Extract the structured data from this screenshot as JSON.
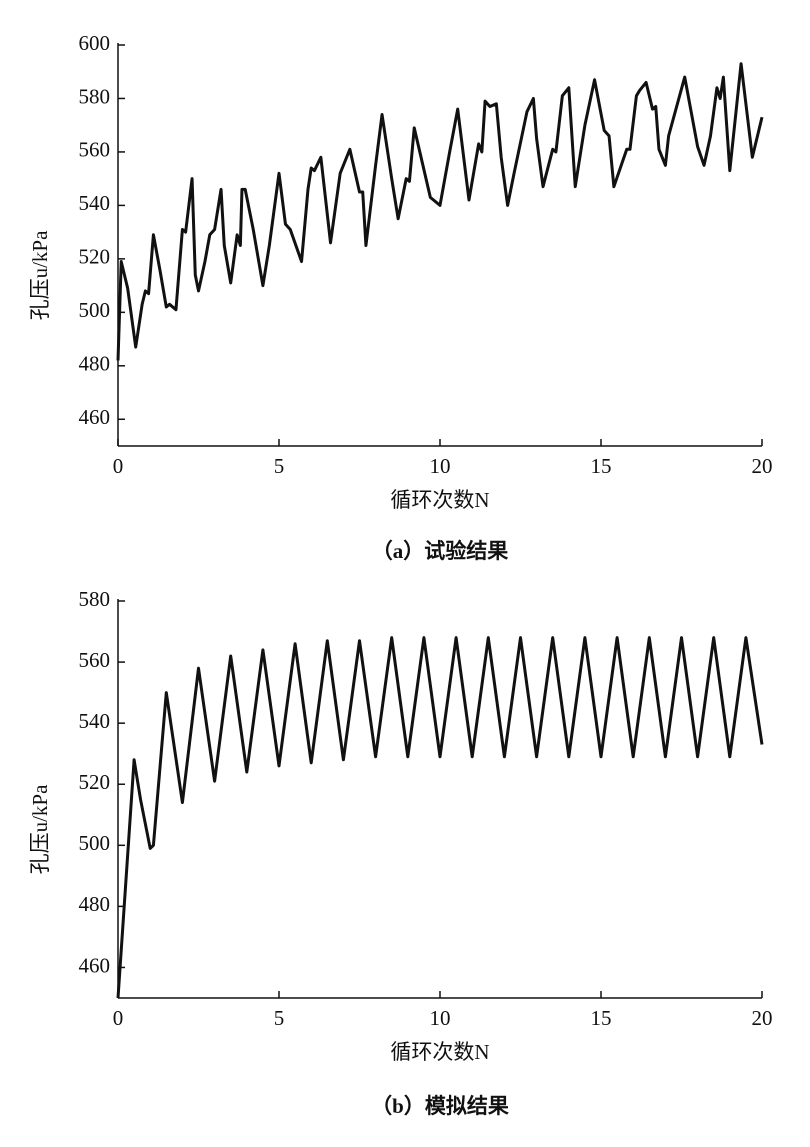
{
  "chart_data": [
    {
      "type": "line",
      "caption": "（a）试验结果",
      "xlabel": "循环次数N",
      "ylabel": "孔压u/kPa",
      "xlim": [
        0,
        20
      ],
      "xticks": [
        0,
        5,
        10,
        15,
        20
      ],
      "ylim": [
        450,
        600
      ],
      "yticks": [
        460,
        480,
        500,
        520,
        540,
        560,
        580,
        600
      ],
      "x": [
        0,
        0.1,
        0.3,
        0.55,
        0.75,
        0.85,
        0.95,
        1.1,
        1.3,
        1.5,
        1.6,
        1.8,
        2.0,
        2.1,
        2.3,
        2.4,
        2.5,
        2.7,
        2.85,
        3.0,
        3.2,
        3.3,
        3.5,
        3.7,
        3.8,
        3.85,
        3.95,
        4.2,
        4.5,
        4.7,
        5.0,
        5.2,
        5.35,
        5.7,
        5.9,
        6.0,
        6.1,
        6.3,
        6.6,
        6.9,
        7.0,
        7.2,
        7.5,
        7.6,
        7.7,
        8.0,
        8.2,
        8.5,
        8.7,
        8.95,
        9.05,
        9.2,
        9.45,
        9.7,
        10.0,
        10.3,
        10.55,
        10.9,
        11.2,
        11.3,
        11.4,
        11.55,
        11.75,
        11.9,
        12.1,
        12.3,
        12.7,
        12.9,
        13.0,
        13.2,
        13.5,
        13.6,
        13.8,
        14.0,
        14.2,
        14.5,
        14.8,
        15.1,
        15.25,
        15.4,
        15.8,
        15.9,
        16.1,
        16.2,
        16.4,
        16.6,
        16.7,
        16.8,
        17.0,
        17.1,
        17.6,
        17.8,
        18.0,
        18.2,
        18.4,
        18.6,
        18.7,
        18.8,
        19.0,
        19.35,
        19.7,
        20
      ],
      "series": [
        {
          "color": "#111111",
          "values": [
            482,
            519,
            509,
            487,
            503,
            508,
            507,
            529,
            516,
            502,
            503,
            501,
            531,
            530,
            550,
            514,
            508,
            519,
            529,
            531,
            546,
            525,
            511,
            529,
            525,
            546,
            546,
            531,
            510,
            525,
            552,
            533,
            531,
            519,
            546,
            554,
            553,
            558,
            526,
            552,
            555,
            561,
            545,
            545,
            525,
            555,
            574,
            550,
            535,
            550,
            549,
            569,
            556,
            543,
            540,
            560,
            576,
            542,
            563,
            560,
            579,
            577,
            578,
            558,
            540,
            552,
            575,
            580,
            565,
            547,
            561,
            560,
            581,
            584,
            547,
            570,
            587,
            568,
            566,
            547,
            561,
            561,
            581,
            583,
            586,
            576,
            577,
            561,
            555,
            566,
            588,
            575,
            562,
            555,
            566,
            584,
            580,
            588,
            553,
            593,
            558,
            573
          ]
        }
      ]
    },
    {
      "type": "line",
      "caption": "（b）模拟结果",
      "xlabel": "循环次数N",
      "ylabel": "孔压u/kPa",
      "xlim": [
        0,
        20
      ],
      "xticks": [
        0,
        5,
        10,
        15,
        20
      ],
      "ylim": [
        450,
        580
      ],
      "yticks": [
        460,
        480,
        500,
        520,
        540,
        560,
        580
      ],
      "x": [
        0,
        0.5,
        0.7,
        1.0,
        1.1,
        1.5,
        2.0,
        2.5,
        3.0,
        3.5,
        4.0,
        4.5,
        5.0,
        5.5,
        6.0,
        6.5,
        7.0,
        7.5,
        8.0,
        8.5,
        9.0,
        9.5,
        10.0,
        10.5,
        11.0,
        11.5,
        12.0,
        12.5,
        13.0,
        13.5,
        14.0,
        14.5,
        15.0,
        15.5,
        16.0,
        16.5,
        17.0,
        17.5,
        18.0,
        18.5,
        19.0,
        19.5,
        20
      ],
      "series": [
        {
          "color": "#111111",
          "values": [
            450,
            528,
            515,
            499,
            500,
            550,
            514,
            558,
            521,
            562,
            524,
            564,
            526,
            566,
            527,
            567,
            528,
            567,
            529,
            568,
            529,
            568,
            529,
            568,
            529,
            568,
            529,
            568,
            529,
            568,
            529,
            568,
            529,
            568,
            529,
            568,
            529,
            568,
            529,
            568,
            529,
            568,
            533
          ]
        }
      ]
    }
  ]
}
